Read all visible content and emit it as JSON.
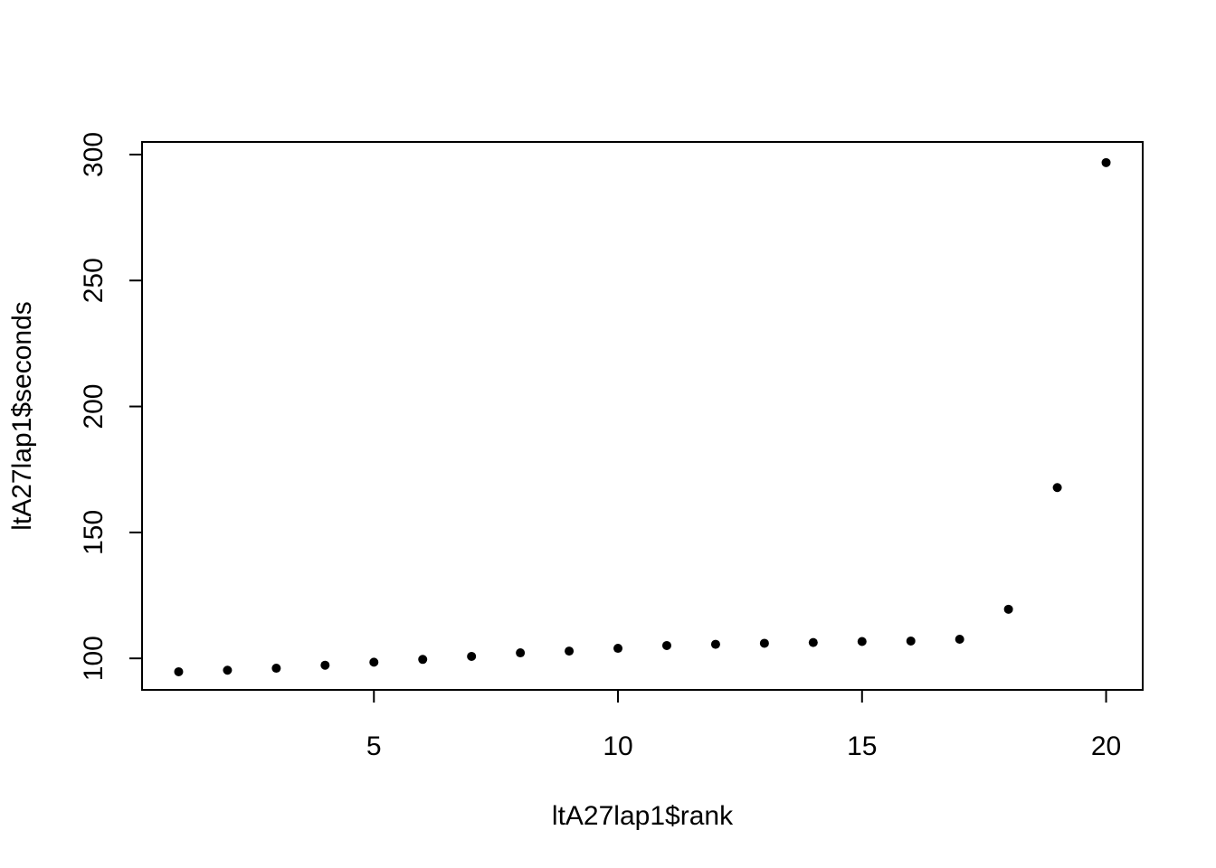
{
  "chart_data": {
    "type": "scatter",
    "title": "",
    "xlabel": "ltA27lap1$rank",
    "ylabel": "ltA27lap1$seconds",
    "xlim": [
      0.25,
      20.75
    ],
    "ylim": [
      87.5,
      305
    ],
    "x_ticks": [
      5,
      10,
      15,
      20
    ],
    "y_ticks": [
      100,
      150,
      200,
      250,
      300
    ],
    "grid": false,
    "legend": "none",
    "point_color": "#000000",
    "series": [
      {
        "x": [
          1,
          2,
          3,
          4,
          5,
          6,
          7,
          8,
          9,
          10,
          11,
          12,
          13,
          14,
          15,
          16,
          17,
          18,
          19,
          20
        ],
        "y": [
          94.7,
          95.3,
          96.1,
          97.3,
          98.5,
          99.6,
          100.8,
          102.2,
          102.9,
          104.0,
          105.1,
          105.6,
          106.0,
          106.3,
          106.7,
          106.9,
          107.6,
          119.5,
          167.8,
          296.8
        ]
      }
    ]
  }
}
